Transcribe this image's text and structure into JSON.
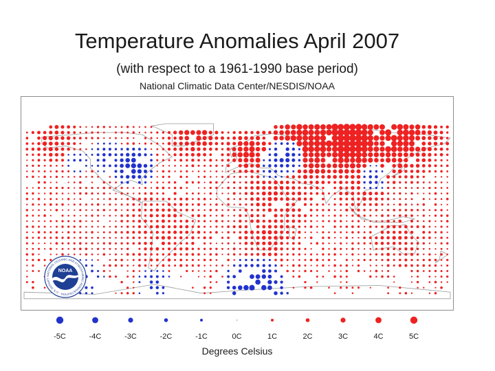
{
  "header": {
    "title": "Temperature Anomalies April 2007",
    "subtitle": "(with respect to a 1961-1990 base period)",
    "source": "National Climatic Data Center/NESDIS/NOAA"
  },
  "logo": {
    "name": "NOAA",
    "ring_text": "NATIONAL OCEANIC AND ATMOSPHERIC ADMINISTRATION · U.S. DEPARTMENT OF COMMERCE"
  },
  "colors": {
    "warm": "#ee2222",
    "cold": "#2233cc",
    "neutral": "#bbbbbb",
    "coast": "#9a9a9a",
    "logo_blue": "#1f3f95"
  },
  "legend": {
    "title": "Degrees Celsius",
    "items": [
      {
        "label": "-5C",
        "value": -5
      },
      {
        "label": "-4C",
        "value": -4
      },
      {
        "label": "-3C",
        "value": -3
      },
      {
        "label": "-2C",
        "value": -2
      },
      {
        "label": "-1C",
        "value": -1
      },
      {
        "label": "0C",
        "value": 0
      },
      {
        "label": "1C",
        "value": 1
      },
      {
        "label": "2C",
        "value": 2
      },
      {
        "label": "3C",
        "value": 3
      },
      {
        "label": "4C",
        "value": 4
      },
      {
        "label": "5C",
        "value": 5
      }
    ]
  },
  "map": {
    "projection": "equirectangular",
    "lon_range": [
      -180,
      180
    ],
    "lat_range": [
      -90,
      90
    ],
    "grid_step_deg": 5,
    "hot_spots": [
      {
        "lon": 95,
        "lat": 67,
        "value": 5,
        "radius": 25
      },
      {
        "lon": 65,
        "lat": 67,
        "value": 4,
        "radius": 30
      },
      {
        "lon": 135,
        "lat": 67,
        "value": 4,
        "radius": 25
      },
      {
        "lon": 10,
        "lat": 55,
        "value": 3.5,
        "radius": 14
      },
      {
        "lon": -35,
        "lat": 72,
        "value": 3,
        "radius": 18
      },
      {
        "lon": -155,
        "lat": 65,
        "value": 2.5,
        "radius": 15
      },
      {
        "lon": 160,
        "lat": 65,
        "value": 2.5,
        "radius": 15
      },
      {
        "lon": 35,
        "lat": 15,
        "value": 2,
        "radius": 25
      },
      {
        "lon": 25,
        "lat": -20,
        "value": 2,
        "radius": 20
      },
      {
        "lon": -60,
        "lat": -15,
        "value": 1.5,
        "radius": 30
      },
      {
        "lon": 105,
        "lat": 25,
        "value": 2,
        "radius": 20
      },
      {
        "lon": 135,
        "lat": -25,
        "value": 1.5,
        "radius": 20
      }
    ],
    "cold_spots": [
      {
        "lon": -88,
        "lat": 42,
        "value": -3.5,
        "radius": 12
      },
      {
        "lon": -110,
        "lat": 50,
        "value": -2,
        "radius": 10
      },
      {
        "lon": 40,
        "lat": 50,
        "value": -3,
        "radius": 10
      },
      {
        "lon": 30,
        "lat": 40,
        "value": -2,
        "radius": 8
      },
      {
        "lon": 115,
        "lat": 30,
        "value": -2,
        "radius": 8
      },
      {
        "lon": 15,
        "lat": -70,
        "value": -4,
        "radius": 18
      },
      {
        "lon": -70,
        "lat": -65,
        "value": -2,
        "radius": 10
      },
      {
        "lon": -135,
        "lat": 45,
        "value": -1.5,
        "radius": 8
      },
      {
        "lon": -130,
        "lat": -60,
        "value": -2,
        "radius": 12
      }
    ]
  }
}
